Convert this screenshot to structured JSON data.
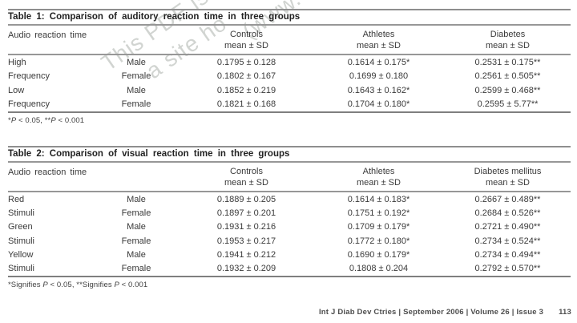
{
  "page": {
    "background": "#ffffff",
    "text_color": "#3a3a3a",
    "rule_color": "#8e8e8e"
  },
  "watermark": {
    "color": "#c9cdc9",
    "lines": [
      "This PDF is",
      "a site ho",
      "(www."
    ]
  },
  "tables": [
    {
      "title": "Table 1: Comparison of auditory reaction time in three groups",
      "col1_header": "Audio reaction time",
      "columns": [
        {
          "name": "Controls",
          "sub": "mean ± SD"
        },
        {
          "name": "Athletes",
          "sub": "mean ± SD"
        },
        {
          "name": "Diabetes",
          "sub": "mean ± SD"
        }
      ],
      "rows": [
        [
          "High",
          "Male",
          "0.1795 ± 0.128",
          "0.1614 ± 0.175*",
          "0.2531 ± 0.175**"
        ],
        [
          "Frequency",
          "Female",
          "0.1802 ± 0.167",
          "0.1699 ± 0.180",
          "0.2561 ± 0.505**"
        ],
        [
          "Low",
          "Male",
          "0.1852 ± 0.219",
          "0.1643 ± 0.162*",
          "0.2599 ± 0.468**"
        ],
        [
          "Frequency",
          "Female",
          "0.1821 ± 0.168",
          "0.1704 ± 0.180*",
          "0.2595 ± 5.77**"
        ]
      ],
      "footnote_parts": [
        "*",
        "P",
        " < 0.05, **",
        "P",
        " < 0.001"
      ]
    },
    {
      "title": "Table 2: Comparison of visual reaction time in three groups",
      "col1_header": "Audio reaction time",
      "columns": [
        {
          "name": "Controls",
          "sub": "mean ± SD"
        },
        {
          "name": "Athletes",
          "sub": "mean ± SD"
        },
        {
          "name": "Diabetes mellitus",
          "sub": "mean ± SD"
        }
      ],
      "rows": [
        [
          "Red",
          "Male",
          "0.1889 ± 0.205",
          "0.1614 ± 0.183*",
          "0.2667 ± 0.489**"
        ],
        [
          "Stimuli",
          "Female",
          "0.1897 ± 0.201",
          "0.1751 ± 0.192*",
          "0.2684 ± 0.526**"
        ],
        [
          "Green",
          "Male",
          "0.1931 ± 0.216",
          "0.1709 ± 0.179*",
          "0.2721 ± 0.490**"
        ],
        [
          "Stimuli",
          "Female",
          "0.1953 ± 0.217",
          "0.1772 ± 0.180*",
          "0.2734 ± 0.524**"
        ],
        [
          "Yellow",
          "Male",
          "0.1941 ± 0.212",
          "0.1690 ± 0.179*",
          "0.2734 ± 0.494**"
        ],
        [
          "Stimuli",
          "Female",
          "0.1932 ± 0.209",
          "0.1808 ± 0.204",
          "0.2792 ± 0.570**"
        ]
      ],
      "footnote_parts": [
        "*Signifies ",
        "P",
        " < 0.05, **Signifies ",
        "P",
        " < 0.001"
      ]
    }
  ],
  "footer": {
    "citation": "Int J Diab Dev Ctries | September 2006 | Volume 26 | Issue 3",
    "page_number": "113"
  }
}
